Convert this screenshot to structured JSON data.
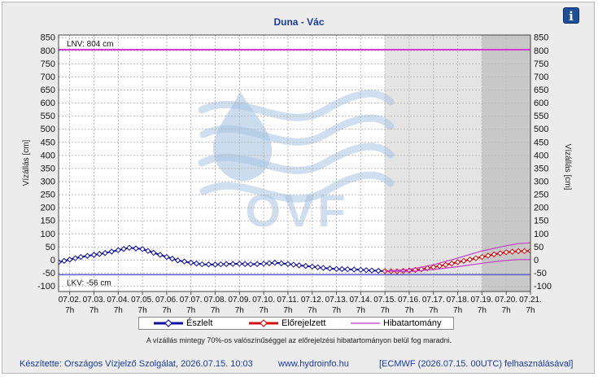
{
  "header": {
    "title": "Duna - Vác",
    "info_icon": "info-icon",
    "info_glyph": "i"
  },
  "chart_data": {
    "type": "line",
    "title": "Duna - Vác",
    "ylabel_left": "Vízállás [cm]",
    "ylabel_right": "Vízállás [cm]",
    "ylim": [
      -120,
      860
    ],
    "y_ticks": [
      -100,
      -50,
      0,
      50,
      100,
      150,
      200,
      250,
      300,
      350,
      400,
      450,
      500,
      550,
      600,
      650,
      700,
      750,
      800,
      850
    ],
    "x_range": [
      "2026-07-01 20:00",
      "2026-07-21 07:00"
    ],
    "x_ticks": [
      {
        "date": "07.02.",
        "hour": "7h"
      },
      {
        "date": "07.03.",
        "hour": "7h"
      },
      {
        "date": "07.04.",
        "hour": "7h"
      },
      {
        "date": "07.05.",
        "hour": "7h"
      },
      {
        "date": "07.06.",
        "hour": "7h"
      },
      {
        "date": "07.07.",
        "hour": "7h"
      },
      {
        "date": "07.08.",
        "hour": "7h"
      },
      {
        "date": "07.09.",
        "hour": "7h"
      },
      {
        "date": "07.10.",
        "hour": "7h"
      },
      {
        "date": "07.11.",
        "hour": "7h"
      },
      {
        "date": "07.12.",
        "hour": "7h"
      },
      {
        "date": "07.13.",
        "hour": "7h"
      },
      {
        "date": "07.14.",
        "hour": "7h"
      },
      {
        "date": "07.15.",
        "hour": "7h"
      },
      {
        "date": "07.16.",
        "hour": "7h"
      },
      {
        "date": "07.17.",
        "hour": "7h"
      },
      {
        "date": "07.18.",
        "hour": "7h"
      },
      {
        "date": "07.19.",
        "hour": "7h"
      },
      {
        "date": "07.20.",
        "hour": "7h"
      },
      {
        "date": "07.21.",
        "hour": "7h"
      }
    ],
    "forecast_shading_start": "2026-07-15 07:00",
    "forecast_dark_start": "2026-07-19 07:00",
    "reference_lines": [
      {
        "label": "LNV: 804 cm",
        "value": 804,
        "color": "#d63ad6"
      },
      {
        "label": "LKV: -56 cm",
        "value": -56,
        "color": "#5a5ac8"
      }
    ],
    "series": [
      {
        "name": "Észlelt",
        "color": "#1010a0",
        "marker_fill": "#ffffff",
        "points": [
          [
            "2026-07-01 20:00",
            -8
          ],
          [
            "2026-07-02 07:00",
            2
          ],
          [
            "2026-07-02 18:00",
            12
          ],
          [
            "2026-07-03 07:00",
            20
          ],
          [
            "2026-07-03 18:00",
            27
          ],
          [
            "2026-07-04 07:00",
            38
          ],
          [
            "2026-07-04 18:00",
            47
          ],
          [
            "2026-07-05 07:00",
            42
          ],
          [
            "2026-07-05 18:00",
            28
          ],
          [
            "2026-07-06 07:00",
            12
          ],
          [
            "2026-07-06 18:00",
            -1
          ],
          [
            "2026-07-07 07:00",
            -10
          ],
          [
            "2026-07-07 18:00",
            -16
          ],
          [
            "2026-07-08 07:00",
            -17
          ],
          [
            "2026-07-08 18:00",
            -15
          ],
          [
            "2026-07-09 07:00",
            -14
          ],
          [
            "2026-07-09 18:00",
            -16
          ],
          [
            "2026-07-10 07:00",
            -14
          ],
          [
            "2026-07-10 18:00",
            -10
          ],
          [
            "2026-07-11 07:00",
            -15
          ],
          [
            "2026-07-11 18:00",
            -20
          ],
          [
            "2026-07-12 07:00",
            -25
          ],
          [
            "2026-07-12 18:00",
            -30
          ],
          [
            "2026-07-13 07:00",
            -34
          ],
          [
            "2026-07-13 18:00",
            -35
          ],
          [
            "2026-07-14 07:00",
            -37
          ],
          [
            "2026-07-14 18:00",
            -40
          ],
          [
            "2026-07-15 07:00",
            -42
          ]
        ]
      },
      {
        "name": "Előrejelzett",
        "color": "#d01010",
        "marker_fill": "#ffffff",
        "points": [
          [
            "2026-07-15 07:00",
            -42
          ],
          [
            "2026-07-15 19:00",
            -43
          ],
          [
            "2026-07-16 07:00",
            -40
          ],
          [
            "2026-07-16 19:00",
            -35
          ],
          [
            "2026-07-17 07:00",
            -27
          ],
          [
            "2026-07-17 19:00",
            -18
          ],
          [
            "2026-07-18 07:00",
            -8
          ],
          [
            "2026-07-18 19:00",
            2
          ],
          [
            "2026-07-19 07:00",
            12
          ],
          [
            "2026-07-19 19:00",
            22
          ],
          [
            "2026-07-20 07:00",
            30
          ],
          [
            "2026-07-20 19:00",
            34
          ],
          [
            "2026-07-21 07:00",
            35
          ]
        ]
      },
      {
        "name": "Hibatartomány",
        "color": "#c43cc4",
        "upper": [
          [
            "2026-07-15 07:00",
            -42
          ],
          [
            "2026-07-16 07:00",
            -36
          ],
          [
            "2026-07-17 07:00",
            -18
          ],
          [
            "2026-07-18 07:00",
            8
          ],
          [
            "2026-07-19 07:00",
            35
          ],
          [
            "2026-07-20 07:00",
            55
          ],
          [
            "2026-07-20 19:00",
            63
          ],
          [
            "2026-07-21 07:00",
            66
          ]
        ],
        "lower": [
          [
            "2026-07-15 07:00",
            -42
          ],
          [
            "2026-07-16 07:00",
            -44
          ],
          [
            "2026-07-17 07:00",
            -36
          ],
          [
            "2026-07-18 07:00",
            -25
          ],
          [
            "2026-07-19 07:00",
            -12
          ],
          [
            "2026-07-20 07:00",
            -1
          ],
          [
            "2026-07-20 19:00",
            2
          ],
          [
            "2026-07-21 07:00",
            2
          ]
        ]
      }
    ]
  },
  "legend": {
    "observed": "Észlelt",
    "forecast": "Előrejelzett",
    "error_band": "Hibatartomány"
  },
  "note": "A vízállás mintegy 70%-os valószínűséggel az előrejelzési hibatartományon belül fog maradni.",
  "footer": {
    "made_by": "Készítette: Országos Vízjelző Szolgálat, 2026.07.15. 10:03",
    "website": "www.hydroinfo.hu",
    "source": "[ECMWF (2026.07.15. 00UTC) felhasználásával]"
  },
  "watermark": {
    "text": "OVF"
  }
}
